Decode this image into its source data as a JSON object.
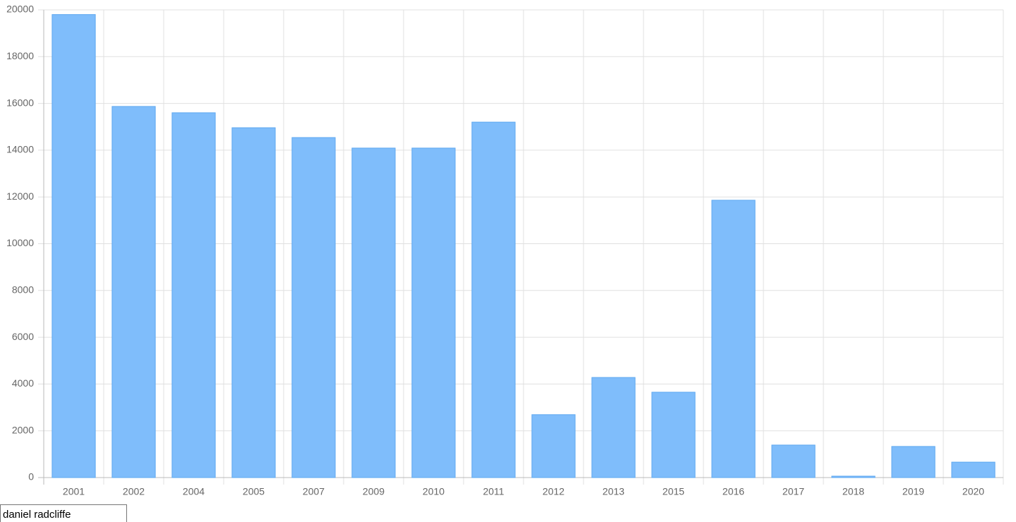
{
  "chart_data": {
    "type": "bar",
    "categories": [
      "2001",
      "2002",
      "2004",
      "2005",
      "2007",
      "2009",
      "2010",
      "2011",
      "2012",
      "2013",
      "2015",
      "2016",
      "2017",
      "2018",
      "2019",
      "2020"
    ],
    "values": [
      19800,
      15870,
      15600,
      14960,
      14540,
      14090,
      14090,
      15200,
      2690,
      4280,
      3650,
      11860,
      1390,
      60,
      1330,
      660
    ],
    "color": "#7fbdfb",
    "ylim": [
      0,
      20000
    ],
    "yticks": [
      0,
      2000,
      4000,
      6000,
      8000,
      10000,
      12000,
      14000,
      16000,
      18000,
      20000
    ],
    "grid": true
  },
  "search_input": {
    "value": "daniel radcliffe"
  }
}
